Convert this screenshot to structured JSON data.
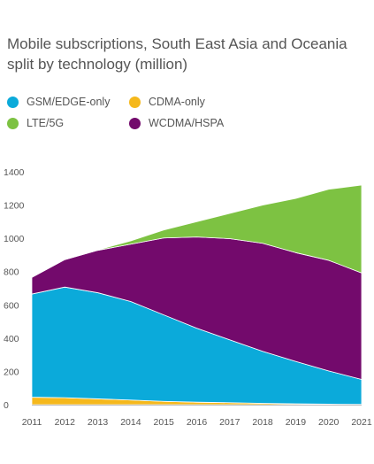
{
  "chart_data": {
    "type": "area",
    "stacked": true,
    "title_lines": [
      "Mobile subscriptions, South East Asia and Oceania",
      "split by technology (million)"
    ],
    "xlabel": "",
    "ylabel": "",
    "x": [
      "2011",
      "2012",
      "2013",
      "2014",
      "2015",
      "2016",
      "2017",
      "2018",
      "2019",
      "2020",
      "2021"
    ],
    "ylim": [
      0,
      1400
    ],
    "yticks": [
      0,
      200,
      400,
      600,
      800,
      1000,
      1200,
      1400
    ],
    "grid": false,
    "legend_position": "top",
    "series": [
      {
        "name": "CDMA-only",
        "color": "#F5B81C",
        "values": [
          45,
          42,
          35,
          28,
          20,
          15,
          12,
          8,
          5,
          3,
          2
        ]
      },
      {
        "name": "GSM/EDGE-only",
        "color": "#0BAADA",
        "values": [
          620,
          665,
          638,
          592,
          520,
          445,
          378,
          313,
          255,
          200,
          150
        ]
      },
      {
        "name": "WCDMA/HSPA",
        "color": "#730A6C",
        "values": [
          100,
          165,
          255,
          345,
          462,
          548,
          608,
          649,
          654,
          665,
          640
        ]
      },
      {
        "name": "LTE/5G",
        "color": "#7DC242",
        "values": [
          0,
          0,
          2,
          20,
          48,
          92,
          152,
          230,
          326,
          427,
          528
        ]
      }
    ]
  },
  "legend": {
    "items": [
      {
        "label": "GSM/EDGE-only",
        "color": "#0BAADA"
      },
      {
        "label": "CDMA-only",
        "color": "#F5B81C"
      },
      {
        "label": "LTE/5G",
        "color": "#7DC242"
      },
      {
        "label": "WCDMA/HSPA",
        "color": "#730A6C"
      }
    ]
  }
}
